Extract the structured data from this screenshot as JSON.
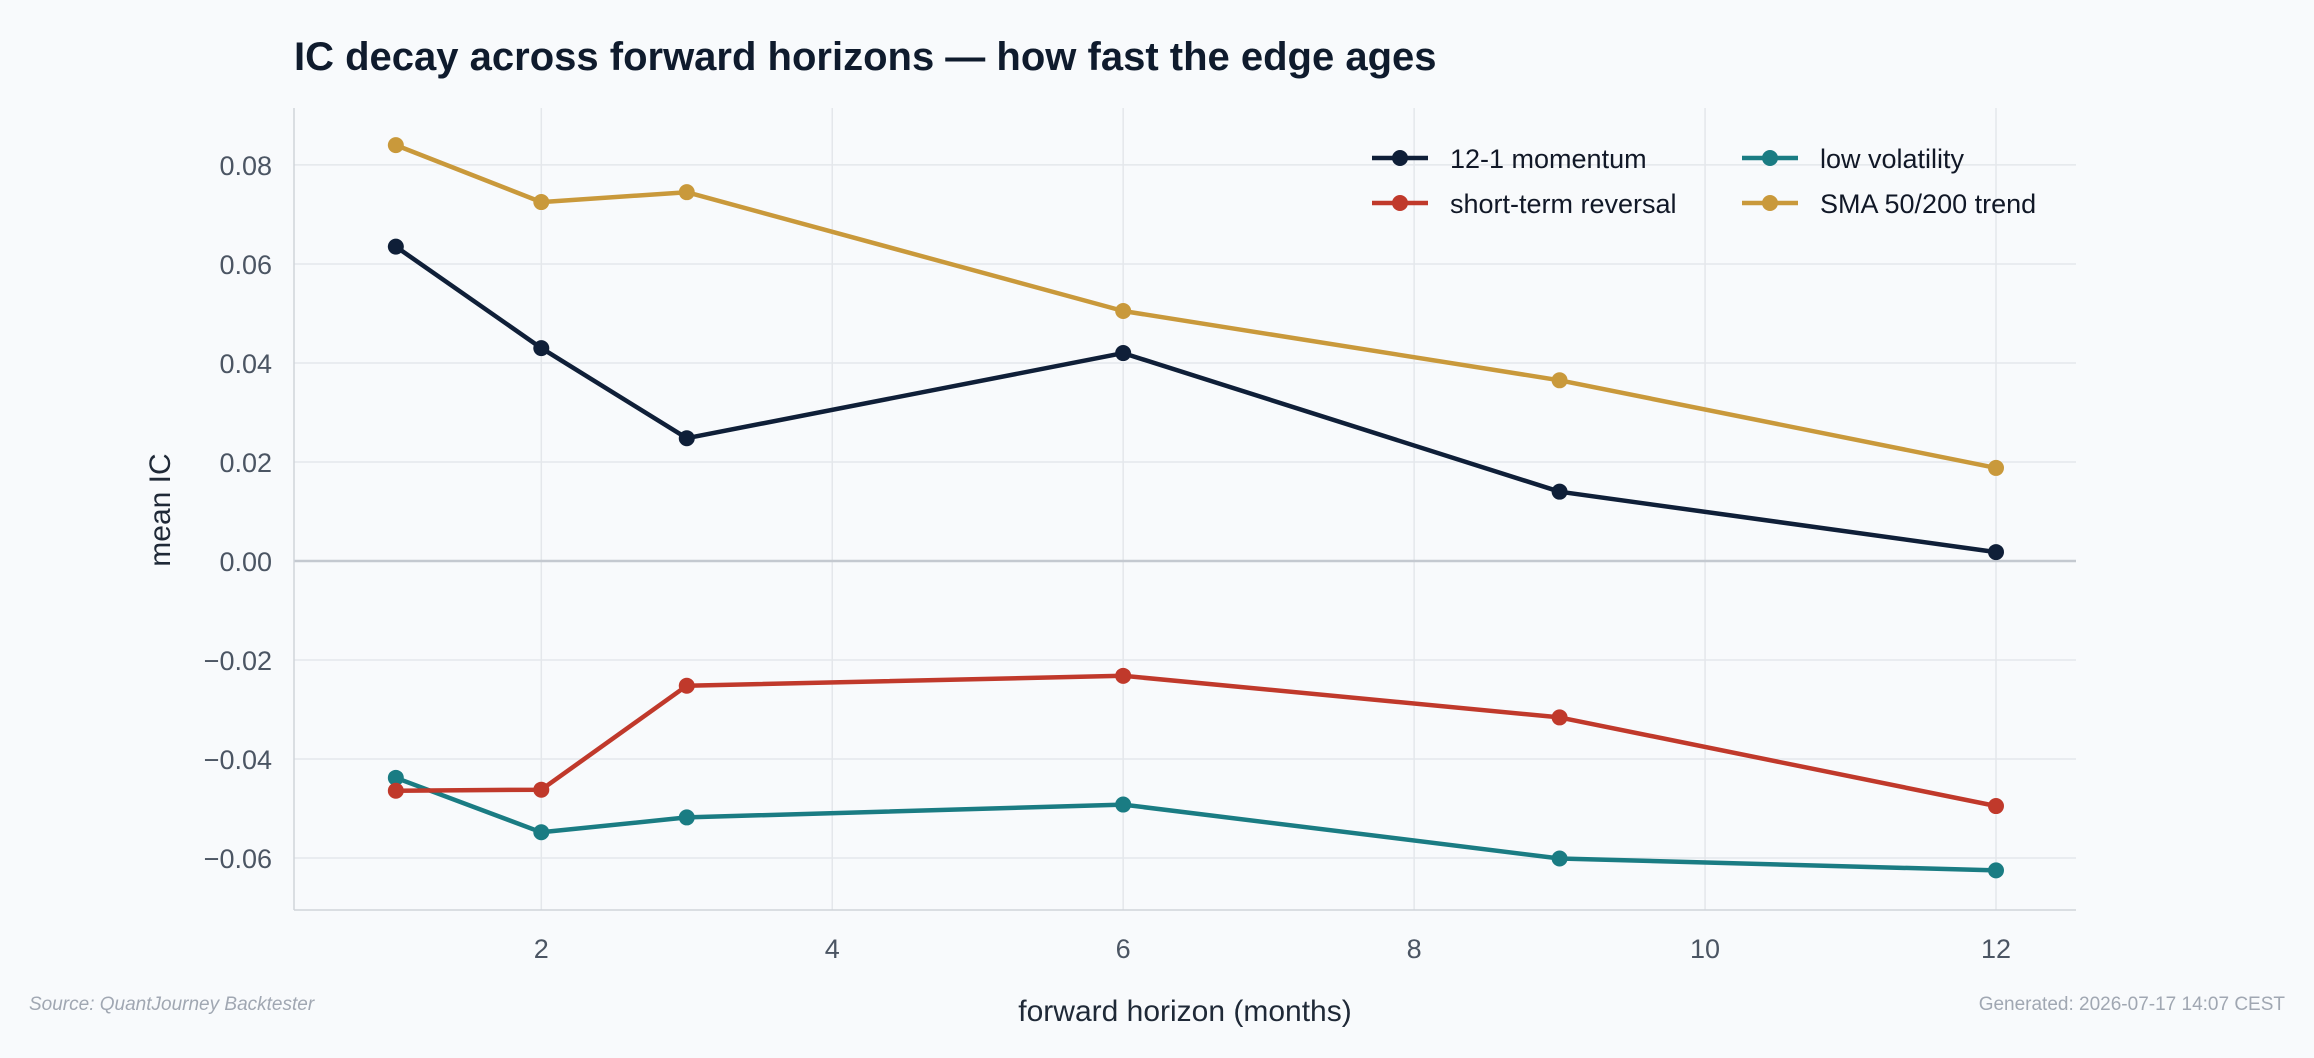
{
  "chart_data": {
    "type": "line",
    "title": "IC decay across forward horizons — how fast the edge ages",
    "xlabel": "forward horizon (months)",
    "ylabel": "mean IC",
    "xlim": [
      0.3,
      12.55
    ],
    "ylim": [
      -0.0705,
      0.0915
    ],
    "x_ticks": [
      2,
      4,
      6,
      8,
      10,
      12
    ],
    "x_tick_labels": [
      "2",
      "4",
      "6",
      "8",
      "10",
      "12"
    ],
    "y_ticks": [
      0.08,
      0.06,
      0.04,
      0.02,
      0.0,
      -0.02,
      -0.04,
      -0.06
    ],
    "y_tick_labels": [
      "0.08",
      "0.06",
      "0.04",
      "0.02",
      "0.00",
      "−0.02",
      "−0.04",
      "−0.06"
    ],
    "x": [
      1,
      2,
      3,
      6,
      9,
      12
    ],
    "grid": true,
    "zero_line": true,
    "legend_position": "top-right",
    "series": [
      {
        "name": "12-1 momentum",
        "color": "#0f1f38",
        "values": [
          0.0635,
          0.043,
          0.0248,
          0.042,
          0.014,
          0.0018
        ]
      },
      {
        "name": "low volatility",
        "color": "#1a7c83",
        "values": [
          -0.0438,
          -0.0548,
          -0.0518,
          -0.0492,
          -0.0601,
          -0.0625
        ]
      },
      {
        "name": "short-term reversal",
        "color": "#c0392b",
        "values": [
          -0.0464,
          -0.0462,
          -0.0252,
          -0.0232,
          -0.0316,
          -0.0495
        ]
      },
      {
        "name": "SMA 50/200 trend",
        "color": "#c9993b",
        "values": [
          0.084,
          0.0725,
          0.0745,
          0.0505,
          0.0365,
          0.0188
        ]
      }
    ]
  },
  "footer": {
    "source": "Source: QuantJourney Backtester",
    "generated": "Generated: 2026-07-17 14:07 CEST"
  }
}
